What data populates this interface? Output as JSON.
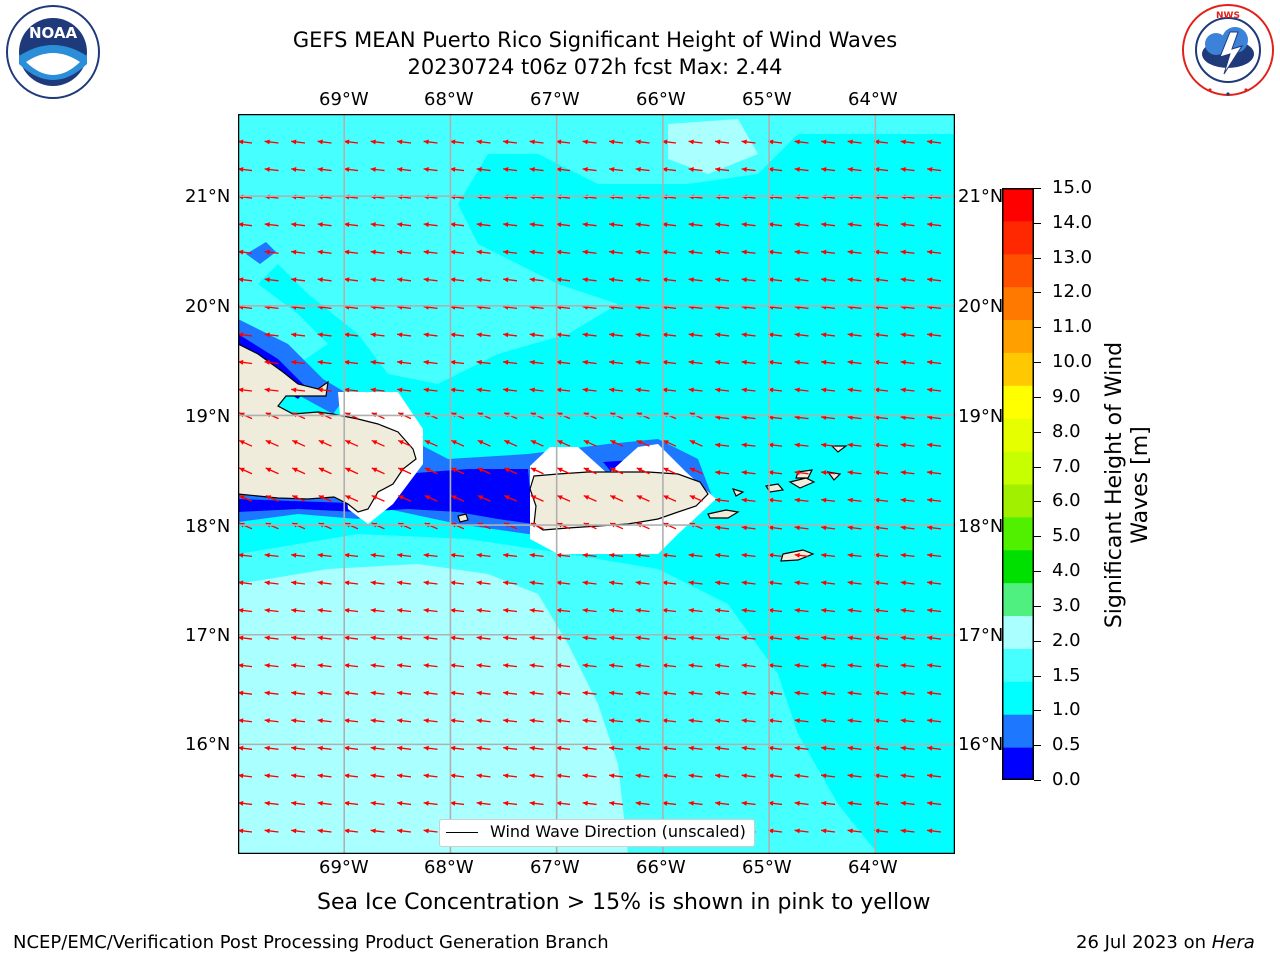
{
  "title": {
    "line1": "GEFS MEAN Puerto Rico Significant Height of Wind Waves",
    "line2": "20230724 t06z 072h fcst   Max: 2.44"
  },
  "logos": {
    "noaa_text": "NOAA",
    "noaa_ring": "NATIONAL OCEANIC AND ATMOSPHERIC ADMINISTRATION · U.S. DEPARTMENT OF COMMERCE",
    "nws_ring": "NATIONAL WEATHER SERVICE"
  },
  "map": {
    "lon_labels": [
      "69°W",
      "68°W",
      "67°W",
      "66°W",
      "65°W",
      "64°W"
    ],
    "lat_labels": [
      "21°N",
      "20°N",
      "19°N",
      "18°N",
      "17°N",
      "16°N"
    ],
    "lon_range": [
      -70,
      -63.25
    ],
    "lat_range": [
      15,
      21.75
    ],
    "lon_ticks": [
      -69,
      -68,
      -67,
      -66,
      -65,
      -64
    ],
    "lat_ticks": [
      21,
      20,
      19,
      18,
      17,
      16
    ],
    "grid": true,
    "arrow_color": "#ff0000",
    "land_color": "#efecdc"
  },
  "legend": {
    "label": "Wind Wave Direction (unscaled)"
  },
  "colorbar": {
    "label": "Significant Height of Wind Waves [m]",
    "ticks": [
      "15.0",
      "14.0",
      "13.0",
      "12.0",
      "11.0",
      "10.0",
      "9.0",
      "8.0",
      "7.0",
      "6.0",
      "5.0",
      "4.0",
      "3.0",
      "2.0",
      "1.5",
      "1.0",
      "0.5",
      "0.0"
    ],
    "colors": [
      "#0000ff",
      "#1e78ff",
      "#00ffff",
      "#46ffff",
      "#aaffff",
      "#50f080",
      "#00e000",
      "#50f000",
      "#a0f000",
      "#c8ff00",
      "#e6ff00",
      "#ffff00",
      "#ffc800",
      "#ffa000",
      "#ff7800",
      "#ff5000",
      "#ff2800",
      "#ff0000"
    ]
  },
  "caption": "Sea Ice Concentration > 15% is shown in pink to yellow",
  "footer": {
    "left": "NCEP/EMC/Verification Post Processing Product Generation Branch",
    "right_prefix": "26 Jul 2023 on ",
    "right_host": "Hera"
  }
}
